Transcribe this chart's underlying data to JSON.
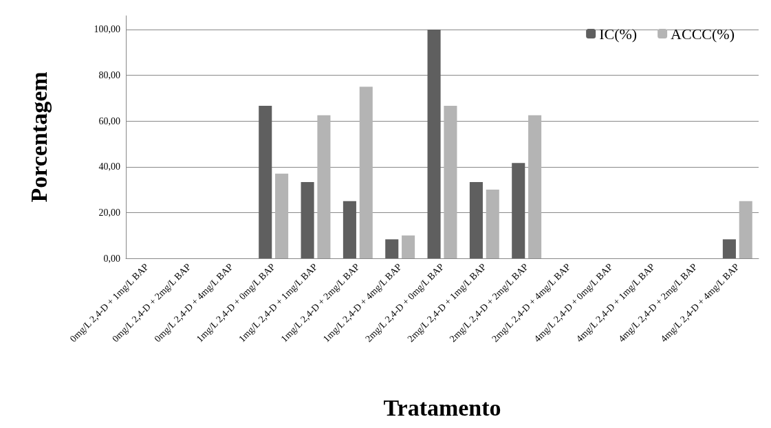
{
  "chart_data": {
    "type": "bar",
    "xlabel": "Tratamento",
    "ylabel": "Porcentagem",
    "categories": [
      "0mg/L 2,4-D + 1mg/L BAP",
      "0mg/L 2,4-D + 2mg/L BAP",
      "0mg/L 2,4-D + 4mg/L BAP",
      "1mg/L 2,4-D + 0mg/L BAP",
      "1mg/L 2,4-D + 1mg/L BAP",
      "1mg/L 2,4-D + 2mg/L BAP",
      "1mg/L 2,4-D + 4mg/L BAP",
      "2mg/L 2,4-D + 0mg/L BAP",
      "2mg/L 2,4-D + 1mg/L BAP",
      "2mg/L 2,4-D + 2mg/L BAP",
      "2mg/L 2,4-D + 4mg/L BAP",
      "4mg/L 2,4-D + 0mg/L BAP",
      "4mg/L 2,4-D + 1mg/L BAP",
      "4mg/L 2,4-D + 2mg/L BAP",
      "4mg/L 2,4-D + 4mg/L BAP"
    ],
    "series": [
      {
        "name": "IC(%)",
        "color": "#5f5f5f",
        "values": [
          0,
          0,
          0,
          66.7,
          33.3,
          25,
          8.3,
          100,
          33.3,
          41.7,
          0,
          0,
          0,
          0,
          8.3
        ]
      },
      {
        "name": "ACCC(%)",
        "color": "#b4b4b4",
        "values": [
          0,
          0,
          0,
          37,
          62.5,
          75,
          10,
          66.7,
          30,
          62.5,
          0,
          0,
          0,
          0,
          25
        ]
      }
    ],
    "ylim": [
      0,
      106
    ],
    "yticks": [
      {
        "value": 0,
        "label": "0,00"
      },
      {
        "value": 20,
        "label": "20,00"
      },
      {
        "value": 40,
        "label": "40,00"
      },
      {
        "value": 60,
        "label": "60,00"
      },
      {
        "value": 80,
        "label": "80,00"
      },
      {
        "value": 100,
        "label": "100,00"
      }
    ],
    "grid": "y",
    "legend": "top right"
  }
}
